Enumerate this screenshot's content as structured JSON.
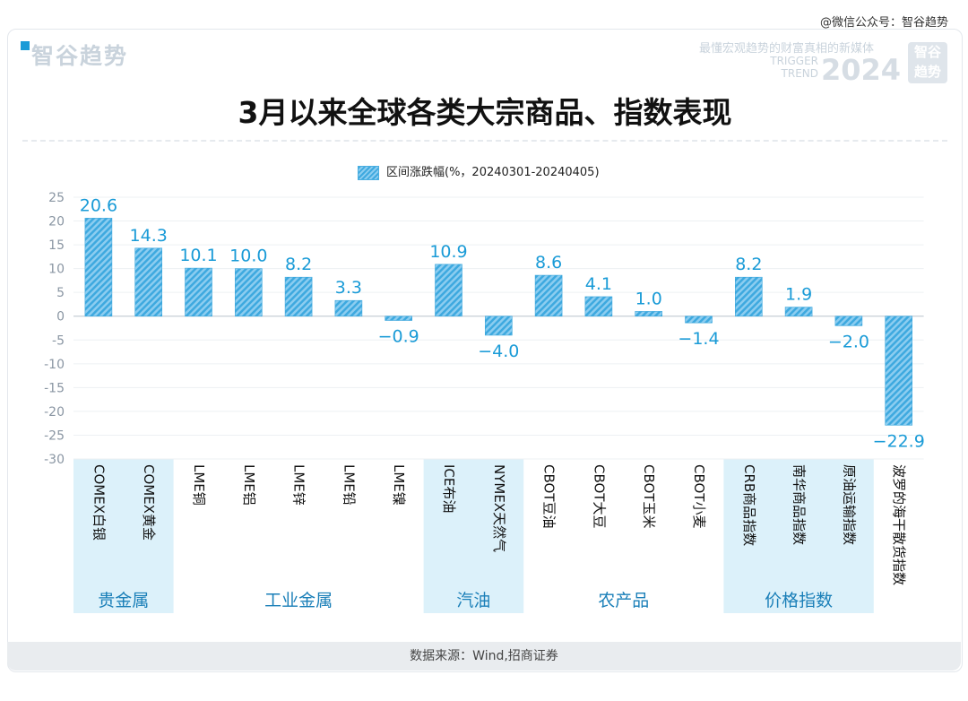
{
  "watermark": "@微信公众号：智谷趋势",
  "brand": {
    "logo_text": "智谷趋势",
    "slogan": "最懂宏观趋势的财富真相的新媒体",
    "trigger_line1": "TRIGGER",
    "trigger_line2": "TREND",
    "year": "2024",
    "box_line1": "智谷",
    "box_line2": "趋势"
  },
  "source": "数据来源：Wind,招商证券",
  "colors": {
    "bar_dark": "#3ea9df",
    "bar_light": "#8ccdf0",
    "label": "#1a9bd7",
    "group_band": "#d6eef9"
  },
  "chart_data": {
    "type": "bar",
    "title": "3月以来全球各类大宗商品、指数表现",
    "legend": "区间涨跌幅(%，20240301-20240405)",
    "legend_position": "top-center",
    "ylim": [
      -30,
      25
    ],
    "yticks": [
      25,
      20,
      15,
      10,
      5,
      0,
      -5,
      -10,
      -15,
      -20,
      -25,
      -30
    ],
    "grid": true,
    "categories": [
      "COMEX白银",
      "COMEX黄金",
      "LME铜",
      "LME铝",
      "LME锌",
      "LME铅",
      "LME镍",
      "ICE布油",
      "NYMEX天然气",
      "CBOT豆油",
      "CBOT大豆",
      "CBOT玉米",
      "CBOT小麦",
      "CRB商品指数",
      "南华商品指数",
      "原油运输指数",
      "波罗的海干散货指数"
    ],
    "values": [
      20.6,
      14.3,
      10.1,
      10.0,
      8.2,
      3.3,
      -0.9,
      10.9,
      -4.0,
      8.6,
      4.1,
      1.0,
      -1.4,
      8.2,
      1.9,
      -2.0,
      -22.9
    ],
    "value_labels": [
      "20.6",
      "14.3",
      "10.1",
      "10.0",
      "8.2",
      "3.3",
      "−0.9",
      "10.9",
      "−4.0",
      "8.6",
      "4.1",
      "1.0",
      "−1.4",
      "8.2",
      "1.9",
      "−2.0",
      "−22.9"
    ],
    "groups": [
      {
        "name": "贵金属",
        "count": 2,
        "shaded": true
      },
      {
        "name": "工业金属",
        "count": 5,
        "shaded": false
      },
      {
        "name": "汽油",
        "count": 2,
        "shaded": true
      },
      {
        "name": "农产品",
        "count": 4,
        "shaded": false
      },
      {
        "name": "价格指数",
        "count": 3,
        "shaded": true
      },
      {
        "name": "",
        "count": 1,
        "shaded": false
      }
    ]
  }
}
